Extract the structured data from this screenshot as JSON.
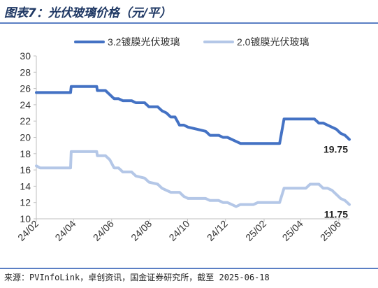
{
  "header": {
    "title": "图表7：光伏玻璃价格（元/平）"
  },
  "footer": {
    "source": "来源：PVInfoLink，卓创资讯，国金证券研究所，截至 2025-06-18"
  },
  "chart_data": {
    "type": "line",
    "title": "",
    "xlabel": "",
    "ylabel": "",
    "ylim": [
      10,
      30
    ],
    "yticks": [
      10,
      12,
      14,
      16,
      18,
      20,
      22,
      24,
      26,
      28,
      30
    ],
    "xlim": [
      "2024-02",
      "2025-06-18"
    ],
    "x_tick_labels": [
      "24/02",
      "24/04",
      "24/06",
      "24/08",
      "24/10",
      "24/12",
      "25/02",
      "25/04",
      "25/06"
    ],
    "x_tick_dates": [
      "2024-02",
      "2024-04",
      "2024-06",
      "2024-08",
      "2024-10",
      "2024-12",
      "2025-02",
      "2025-04",
      "2025-06"
    ],
    "legend_position": "top",
    "grid": false,
    "series": [
      {
        "name": "3.2镀膜光伏玻璃",
        "color": "#4472c4",
        "end_label": "19.75",
        "points": [
          [
            "2024-02-01",
            25.5
          ],
          [
            "2024-03-27",
            25.5
          ],
          [
            "2024-03-28",
            26.25
          ],
          [
            "2024-05-08",
            26.25
          ],
          [
            "2024-05-09",
            25.75
          ],
          [
            "2024-05-22",
            25.75
          ],
          [
            "2024-05-29",
            25.25
          ],
          [
            "2024-06-05",
            24.75
          ],
          [
            "2024-06-12",
            24.75
          ],
          [
            "2024-06-19",
            24.5
          ],
          [
            "2024-07-03",
            24.5
          ],
          [
            "2024-07-10",
            24.25
          ],
          [
            "2024-07-24",
            24.25
          ],
          [
            "2024-07-31",
            23.75
          ],
          [
            "2024-08-14",
            23.75
          ],
          [
            "2024-08-21",
            23.25
          ],
          [
            "2024-08-28",
            23.0
          ],
          [
            "2024-09-04",
            22.5
          ],
          [
            "2024-09-11",
            22.5
          ],
          [
            "2024-09-18",
            21.5
          ],
          [
            "2024-09-25",
            21.5
          ],
          [
            "2024-10-02",
            21.25
          ],
          [
            "2024-10-16",
            21.0
          ],
          [
            "2024-10-30",
            20.75
          ],
          [
            "2024-11-06",
            20.25
          ],
          [
            "2024-11-20",
            20.25
          ],
          [
            "2024-11-27",
            20.0
          ],
          [
            "2024-12-04",
            20.0
          ],
          [
            "2024-12-11",
            19.75
          ],
          [
            "2024-12-25",
            19.25
          ],
          [
            "2025-02-26",
            19.25
          ],
          [
            "2025-03-05",
            22.25
          ],
          [
            "2025-04-23",
            22.25
          ],
          [
            "2025-04-30",
            21.75
          ],
          [
            "2025-05-07",
            21.75
          ],
          [
            "2025-05-14",
            21.5
          ],
          [
            "2025-05-21",
            21.25
          ],
          [
            "2025-05-28",
            21.0
          ],
          [
            "2025-06-04",
            20.5
          ],
          [
            "2025-06-11",
            20.25
          ],
          [
            "2025-06-18",
            19.75
          ]
        ]
      },
      {
        "name": "2.0镀膜光伏玻璃",
        "color": "#b4c7e7",
        "end_label": "11.75",
        "points": [
          [
            "2024-02-01",
            16.5
          ],
          [
            "2024-02-07",
            16.25
          ],
          [
            "2024-03-27",
            16.25
          ],
          [
            "2024-03-28",
            18.25
          ],
          [
            "2024-05-08",
            18.25
          ],
          [
            "2024-05-09",
            17.75
          ],
          [
            "2024-05-22",
            17.75
          ],
          [
            "2024-05-29",
            17.25
          ],
          [
            "2024-06-05",
            16.25
          ],
          [
            "2024-06-12",
            16.25
          ],
          [
            "2024-06-19",
            15.75
          ],
          [
            "2024-07-03",
            15.75
          ],
          [
            "2024-07-10",
            15.25
          ],
          [
            "2024-07-24",
            15.0
          ],
          [
            "2024-07-31",
            14.5
          ],
          [
            "2024-08-14",
            14.25
          ],
          [
            "2024-08-21",
            13.75
          ],
          [
            "2024-08-28",
            13.5
          ],
          [
            "2024-09-04",
            13.25
          ],
          [
            "2024-09-18",
            13.25
          ],
          [
            "2024-09-25",
            12.75
          ],
          [
            "2024-10-02",
            12.5
          ],
          [
            "2024-10-30",
            12.5
          ],
          [
            "2024-11-06",
            12.25
          ],
          [
            "2024-11-20",
            12.25
          ],
          [
            "2024-11-27",
            12.0
          ],
          [
            "2024-12-04",
            12.0
          ],
          [
            "2024-12-11",
            11.75
          ],
          [
            "2024-12-18",
            11.5
          ],
          [
            "2024-12-25",
            11.75
          ],
          [
            "2025-01-15",
            11.75
          ],
          [
            "2025-01-22",
            12.0
          ],
          [
            "2025-02-26",
            12.0
          ],
          [
            "2025-03-05",
            13.75
          ],
          [
            "2025-04-09",
            13.75
          ],
          [
            "2025-04-16",
            14.25
          ],
          [
            "2025-04-30",
            14.25
          ],
          [
            "2025-05-07",
            13.75
          ],
          [
            "2025-05-14",
            13.75
          ],
          [
            "2025-05-21",
            13.5
          ],
          [
            "2025-05-28",
            13.0
          ],
          [
            "2025-06-04",
            12.5
          ],
          [
            "2025-06-11",
            12.25
          ],
          [
            "2025-06-18",
            11.75
          ]
        ]
      }
    ]
  }
}
